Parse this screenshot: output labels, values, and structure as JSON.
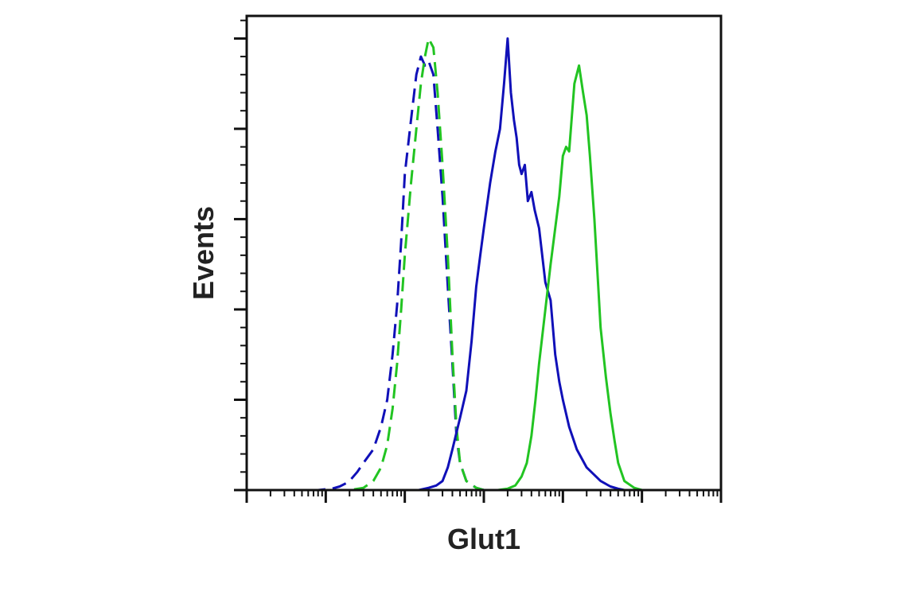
{
  "chart_data": {
    "type": "line",
    "title": "",
    "xlabel": "Glut1",
    "ylabel": "Events",
    "x_scale": "log",
    "xlim": [
      1,
      1000000
    ],
    "ylim": [
      0,
      105
    ],
    "grid": false,
    "legend": "none",
    "series": [
      {
        "color": "#1010b8",
        "dash": true,
        "x": [
          1,
          2,
          3,
          5,
          8,
          10,
          12,
          15,
          18,
          20,
          25,
          30,
          40,
          50,
          60,
          70,
          80,
          90,
          100,
          120,
          140,
          160,
          180,
          200,
          230,
          260,
          300,
          350,
          400,
          450,
          500,
          600,
          800,
          1000,
          10000
        ],
        "y": [
          0,
          0,
          0,
          0,
          0,
          0.2,
          0.3,
          0.8,
          1.5,
          2,
          4,
          6,
          9,
          14,
          20,
          30,
          41,
          55,
          70,
          82,
          92,
          96,
          94,
          95,
          92,
          80,
          65,
          45,
          28,
          12,
          6,
          2,
          0.5,
          0,
          0
        ]
      },
      {
        "color": "#22c422",
        "dash": true,
        "x": [
          1,
          10,
          20,
          30,
          40,
          50,
          60,
          70,
          80,
          90,
          100,
          120,
          140,
          160,
          180,
          200,
          230,
          260,
          300,
          350,
          400,
          450,
          500,
          600,
          800,
          1000,
          10000
        ],
        "y": [
          0,
          0,
          0,
          0.5,
          2,
          5,
          10,
          18,
          28,
          40,
          52,
          68,
          80,
          90,
          96,
          100,
          98,
          88,
          72,
          52,
          30,
          14,
          6,
          2,
          0.5,
          0,
          0
        ]
      },
      {
        "color": "#1010b8",
        "dash": false,
        "x": [
          1,
          100,
          150,
          200,
          250,
          300,
          350,
          400,
          500,
          600,
          700,
          800,
          900,
          1000,
          1200,
          1400,
          1600,
          1800,
          2000,
          2200,
          2400,
          2600,
          2800,
          3000,
          3300,
          3600,
          4000,
          4400,
          5000,
          6000,
          7000,
          8000,
          9000,
          10000,
          12000,
          15000,
          20000,
          30000,
          40000,
          50000,
          60000,
          80000,
          100000,
          1000000
        ],
        "y": [
          0,
          0,
          0,
          0.5,
          1,
          2,
          5,
          9,
          16,
          22,
          33,
          45,
          52,
          58,
          68,
          75,
          80,
          90,
          100,
          88,
          82,
          78,
          72,
          70,
          72,
          64,
          66,
          62,
          58,
          46,
          42,
          30,
          24,
          20,
          14,
          9,
          5,
          2,
          0.8,
          0.3,
          0,
          0,
          0,
          0
        ]
      },
      {
        "color": "#22c422",
        "dash": false,
        "x": [
          1,
          1000,
          1500,
          2000,
          2500,
          3000,
          3500,
          4000,
          4500,
          5000,
          6000,
          7000,
          8000,
          9000,
          10000,
          11000,
          12000,
          13000,
          14000,
          16000,
          18000,
          20000,
          22000,
          25000,
          28000,
          30000,
          35000,
          40000,
          45000,
          50000,
          60000,
          80000,
          100000,
          1000000
        ],
        "y": [
          0,
          0,
          0,
          0.3,
          1,
          3,
          6,
          12,
          20,
          28,
          40,
          50,
          58,
          65,
          74,
          76,
          75,
          83,
          90,
          94,
          88,
          83,
          74,
          60,
          45,
          36,
          25,
          17,
          11,
          6,
          2,
          0.5,
          0,
          0
        ]
      }
    ]
  }
}
